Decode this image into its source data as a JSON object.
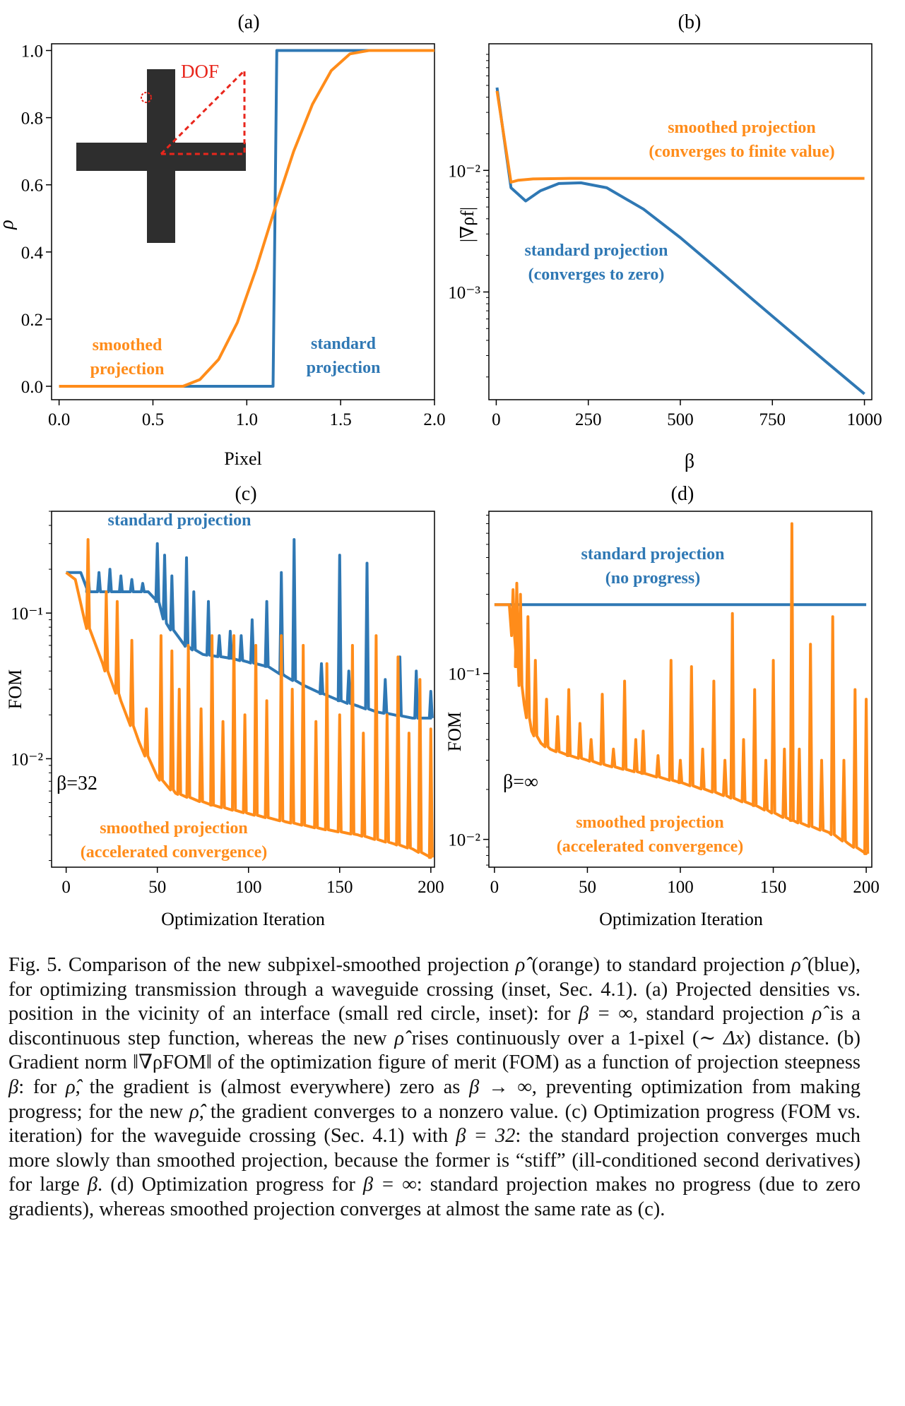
{
  "colors": {
    "blue": "#2f78b4",
    "orange": "#ff8c1a",
    "red": "#e8261c",
    "inset": "#2e2e2e"
  },
  "panels": {
    "a": {
      "label": "(a)",
      "xlabel": "Pixel",
      "ylabel": "ρ",
      "xticks": [
        "0.0",
        "0.5",
        "1.0",
        "1.5",
        "2.0"
      ],
      "yticks": [
        "0.0",
        "0.2",
        "0.4",
        "0.6",
        "0.8",
        "1.0"
      ],
      "inset_label": "DOF",
      "annot_smoothed_1": "smoothed",
      "annot_smoothed_2": "projection",
      "annot_standard_1": "standard",
      "annot_standard_2": "projection"
    },
    "b": {
      "label": "(b)",
      "xlabel": "β",
      "ylabel": "|∇ρf|",
      "xticks": [
        "0",
        "250",
        "500",
        "750",
        "1000"
      ],
      "yticks": [
        "10⁻²",
        "10⁻³"
      ],
      "annot_smoothed_1": "smoothed projection",
      "annot_smoothed_2": "(converges to finite value)",
      "annot_standard_1": "standard projection",
      "annot_standard_2": "(converges to zero)"
    },
    "c": {
      "label": "(c)",
      "xlabel": "Optimization Iteration",
      "ylabel": "FOM",
      "xticks": [
        "0",
        "50",
        "100",
        "150",
        "200"
      ],
      "yticks": [
        "10⁻¹",
        "10⁻²"
      ],
      "annot_standard": "standard projection",
      "annot_beta": "β=32",
      "annot_smoothed_1": "smoothed projection",
      "annot_smoothed_2": "(accelerated convergence)"
    },
    "d": {
      "label": "(d)",
      "xlabel": "Optimization Iteration",
      "ylabel": "FOM",
      "xticks": [
        "0",
        "50",
        "100",
        "150",
        "200"
      ],
      "yticks": [
        "10⁻¹",
        "10⁻²"
      ],
      "annot_standard_1": "standard projection",
      "annot_standard_2": "(no progress)",
      "annot_beta": "β=∞",
      "annot_smoothed_1": "smoothed projection",
      "annot_smoothed_2": "(accelerated convergence)"
    }
  },
  "chart_data": [
    {
      "panel": "a",
      "type": "line",
      "xlabel": "Pixel",
      "ylabel": "ρ",
      "xlim": [
        -0.04,
        2.0
      ],
      "ylim": [
        -0.04,
        1.02
      ],
      "series": [
        {
          "name": "standard projection",
          "color": "#2f78b4",
          "x": [
            0.0,
            1.14,
            1.15,
            1.16,
            2.0
          ],
          "y": [
            0.0,
            0.0,
            0.5,
            1.0,
            1.0
          ]
        },
        {
          "name": "smoothed projection",
          "color": "#ff8c1a",
          "x": [
            0.0,
            0.66,
            0.75,
            0.85,
            0.95,
            1.05,
            1.15,
            1.25,
            1.35,
            1.45,
            1.55,
            1.65,
            2.0
          ],
          "y": [
            0.0,
            0.0,
            0.02,
            0.08,
            0.19,
            0.35,
            0.53,
            0.7,
            0.84,
            0.94,
            0.99,
            1.0,
            1.0
          ]
        }
      ]
    },
    {
      "panel": "b",
      "type": "line",
      "xlabel": "β",
      "ylabel": "|∇ρf|",
      "yscale": "log",
      "xlim": [
        -20,
        1020
      ],
      "ylim": [
        0.00013,
        0.11
      ],
      "series": [
        {
          "name": "standard projection",
          "color": "#2f78b4",
          "x": [
            2,
            40,
            80,
            120,
            170,
            230,
            300,
            400,
            500,
            600,
            700,
            800,
            900,
            1000
          ],
          "y": [
            0.048,
            0.0072,
            0.0056,
            0.0068,
            0.0078,
            0.0079,
            0.0072,
            0.0048,
            0.0028,
            0.00155,
            0.00085,
            0.00047,
            0.00026,
            0.000145
          ]
        },
        {
          "name": "smoothed projection",
          "color": "#ff8c1a",
          "x": [
            2,
            40,
            60,
            100,
            200,
            300,
            500,
            750,
            1000
          ],
          "y": [
            0.045,
            0.008,
            0.0083,
            0.0085,
            0.0086,
            0.0086,
            0.0086,
            0.0086,
            0.0086
          ]
        }
      ]
    },
    {
      "panel": "c",
      "type": "line",
      "xlabel": "Optimization Iteration",
      "ylabel": "FOM",
      "yscale": "log",
      "xlim": [
        -8,
        202
      ],
      "ylim": [
        0.0018,
        0.5
      ],
      "series": [
        {
          "name": "standard projection",
          "color": "#2f78b4",
          "x": [
            0,
            8,
            12,
            20,
            30,
            40,
            45,
            50,
            55,
            65,
            75,
            90,
            100,
            110,
            120,
            130,
            140,
            150,
            160,
            170,
            180,
            190,
            200
          ],
          "y": [
            0.19,
            0.19,
            0.14,
            0.14,
            0.14,
            0.14,
            0.14,
            0.12,
            0.085,
            0.06,
            0.052,
            0.049,
            0.046,
            0.043,
            0.037,
            0.032,
            0.028,
            0.025,
            0.023,
            0.021,
            0.02,
            0.019,
            0.019
          ],
          "spikes_x": [
            12,
            18,
            24,
            30,
            36,
            42,
            50,
            54,
            58,
            66,
            70,
            78,
            84,
            90,
            96,
            102,
            110,
            118,
            125,
            140,
            150,
            155,
            165,
            175,
            183,
            192,
            200
          ],
          "spikes_y": [
            0.19,
            0.19,
            0.2,
            0.18,
            0.17,
            0.16,
            0.3,
            0.25,
            0.18,
            0.24,
            0.14,
            0.12,
            0.07,
            0.075,
            0.07,
            0.09,
            0.12,
            0.19,
            0.32,
            0.045,
            0.25,
            0.04,
            0.22,
            0.035,
            0.05,
            0.04,
            0.029
          ]
        },
        {
          "name": "smoothed projection",
          "color": "#ff8c1a",
          "x": [
            0,
            5,
            10,
            20,
            30,
            40,
            50,
            60,
            80,
            100,
            120,
            140,
            160,
            180,
            190,
            200
          ],
          "y": [
            0.19,
            0.17,
            0.09,
            0.045,
            0.025,
            0.013,
            0.0075,
            0.0058,
            0.0048,
            0.0042,
            0.0037,
            0.0033,
            0.003,
            0.0026,
            0.0024,
            0.0021
          ],
          "spikes_x": [
            12,
            22,
            28,
            36,
            44,
            52,
            58,
            62,
            67,
            74,
            80,
            86,
            92,
            98,
            104,
            110,
            118,
            124,
            130,
            137,
            143,
            150,
            157,
            163,
            170,
            176,
            182,
            188,
            194,
            200
          ],
          "spikes_y": [
            0.32,
            0.14,
            0.12,
            0.065,
            0.022,
            0.07,
            0.055,
            0.03,
            0.06,
            0.022,
            0.07,
            0.018,
            0.07,
            0.02,
            0.06,
            0.025,
            0.07,
            0.03,
            0.06,
            0.018,
            0.045,
            0.02,
            0.06,
            0.015,
            0.07,
            0.02,
            0.05,
            0.015,
            0.035,
            0.016
          ]
        }
      ]
    },
    {
      "panel": "d",
      "type": "line",
      "xlabel": "Optimization Iteration",
      "ylabel": "FOM",
      "yscale": "log",
      "xlim": [
        -3,
        203
      ],
      "ylim": [
        0.0068,
        0.95
      ],
      "series": [
        {
          "name": "standard projection",
          "color": "#2f78b4",
          "x": [
            0,
            200
          ],
          "y": [
            0.26,
            0.26
          ]
        },
        {
          "name": "smoothed projection",
          "color": "#ff8c1a",
          "x": [
            0,
            8,
            12,
            16,
            20,
            25,
            30,
            40,
            50,
            60,
            80,
            100,
            120,
            140,
            160,
            180,
            190,
            200
          ],
          "y": [
            0.26,
            0.26,
            0.11,
            0.065,
            0.045,
            0.038,
            0.035,
            0.032,
            0.03,
            0.028,
            0.025,
            0.022,
            0.019,
            0.016,
            0.013,
            0.011,
            0.0095,
            0.0082
          ],
          "spikes_x": [
            10,
            12,
            14,
            18,
            22,
            28,
            34,
            40,
            46,
            52,
            58,
            64,
            70,
            76,
            80,
            88,
            95,
            100,
            106,
            112,
            118,
            124,
            128,
            134,
            140,
            146,
            150,
            156,
            160,
            164,
            170,
            176,
            182,
            188,
            194,
            200
          ],
          "spikes_y": [
            0.32,
            0.35,
            0.3,
            0.22,
            0.12,
            0.07,
            0.055,
            0.08,
            0.05,
            0.04,
            0.075,
            0.035,
            0.09,
            0.04,
            0.045,
            0.032,
            0.12,
            0.03,
            0.11,
            0.035,
            0.09,
            0.03,
            0.23,
            0.04,
            0.08,
            0.03,
            0.12,
            0.035,
            0.8,
            0.035,
            0.15,
            0.03,
            0.22,
            0.03,
            0.08,
            0.07
          ]
        }
      ]
    }
  ],
  "caption": {
    "l1a": "Fig. 5. Comparison of the new subpixel-smoothed projection ",
    "l1b": " (orange) to standard",
    "l2a": "projection ",
    "l2b": " (blue), for optimizing transmission through a waveguide crossing (inset,",
    "l3": "Sec. 4.1). (a) Projected densities vs. position in the vicinity of an interface (small",
    "l4a": "red circle, inset): for ",
    "l4b": ", standard projection ",
    "l4c": " is a discontinuous step function,",
    "l5a": "whereas the new ",
    "l5b": " rises continuously over a 1-pixel (",
    "l5c": ") distance. (b) Gradient",
    "l6a": "norm ",
    "l6b": " of the optimization figure of merit (FOM) as a function of projection",
    "l7a": "steepness ",
    "l7b": ": for ",
    "l7c": ", the gradient is (almost everywhere) zero as ",
    "l7d": ", preventing",
    "l8a": "optimization from making progress; for the new ",
    "l8b": ", the gradient converges to a nonzero",
    "l9": "value. (c) Optimization progress (FOM vs. iteration) for the waveguide crossing",
    "l10a": "(Sec. 4.1) with ",
    "l10b": ": the standard projection converges much more slowly than",
    "l11": "smoothed projection, because the former is “stiff” (ill-conditioned second derivatives)",
    "l12a": "for large ",
    "l12b": ". (d) Optimization progress for ",
    "l12c": ": standard projection makes no progress",
    "l13": "(due to zero gradients), whereas smoothed projection converges at almost the same rate",
    "l14": "as (c).",
    "m_rhohathat": "ρ̂̂",
    "m_rhohat": "ρ̂",
    "m_beta_inf": "β = ∞",
    "m_dx": "∼ Δx",
    "m_gradnorm": "‖∇ρFOM‖",
    "m_beta": "β",
    "m_beta_to_inf": "β → ∞",
    "m_beta_32": "β = 32"
  }
}
